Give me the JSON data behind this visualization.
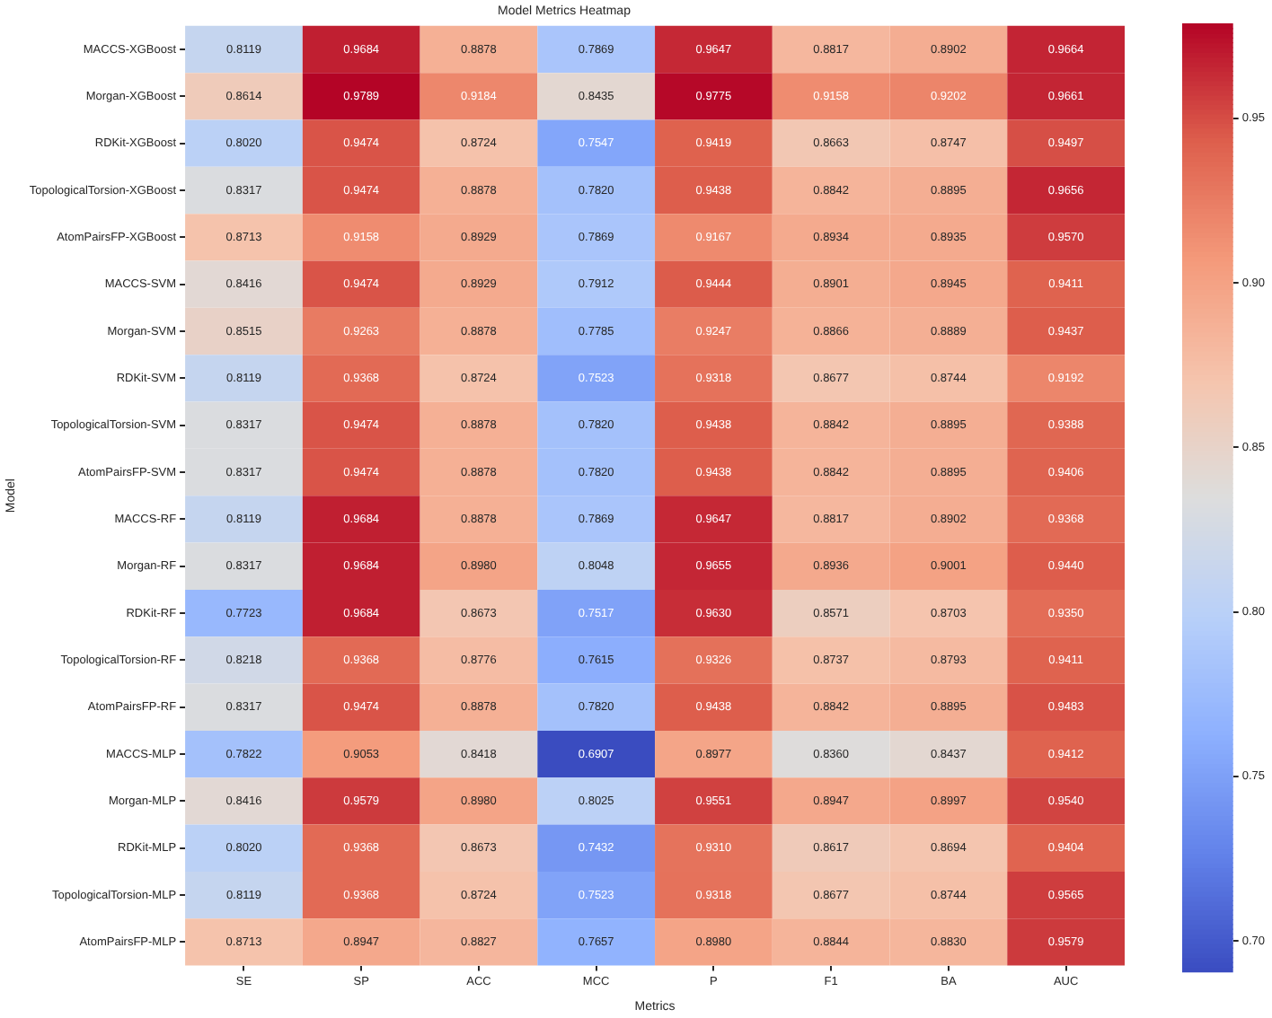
{
  "chart_data": {
    "type": "heatmap",
    "title": "Model Metrics Heatmap",
    "xlabel": "Metrics",
    "ylabel": "Model",
    "categories": [
      "SE",
      "SP",
      "ACC",
      "MCC",
      "P",
      "F1",
      "BA",
      "AUC"
    ],
    "y_categories": [
      "MACCS-XGBoost",
      "Morgan-XGBoost",
      "RDKit-XGBoost",
      "TopologicalTorsion-XGBoost",
      "AtomPairsFP-XGBoost",
      "MACCS-SVM",
      "Morgan-SVM",
      "RDKit-SVM",
      "TopologicalTorsion-SVM",
      "AtomPairsFP-SVM",
      "MACCS-RF",
      "Morgan-RF",
      "RDKit-RF",
      "TopologicalTorsion-RF",
      "AtomPairsFP-RF",
      "MACCS-MLP",
      "Morgan-MLP",
      "RDKit-MLP",
      "TopologicalTorsion-MLP",
      "AtomPairsFP-MLP"
    ],
    "cells": [
      [
        0.8119,
        0.9684,
        0.8878,
        0.7869,
        0.9647,
        0.8817,
        0.8902,
        0.9664
      ],
      [
        0.8614,
        0.9789,
        0.9184,
        0.8435,
        0.9775,
        0.9158,
        0.9202,
        0.9661
      ],
      [
        0.802,
        0.9474,
        0.8724,
        0.7547,
        0.9419,
        0.8663,
        0.8747,
        0.9497
      ],
      [
        0.8317,
        0.9474,
        0.8878,
        0.782,
        0.9438,
        0.8842,
        0.8895,
        0.9656
      ],
      [
        0.8713,
        0.9158,
        0.8929,
        0.7869,
        0.9167,
        0.8934,
        0.8935,
        0.957
      ],
      [
        0.8416,
        0.9474,
        0.8929,
        0.7912,
        0.9444,
        0.8901,
        0.8945,
        0.9411
      ],
      [
        0.8515,
        0.9263,
        0.8878,
        0.7785,
        0.9247,
        0.8866,
        0.8889,
        0.9437
      ],
      [
        0.8119,
        0.9368,
        0.8724,
        0.7523,
        0.9318,
        0.8677,
        0.8744,
        0.9192
      ],
      [
        0.8317,
        0.9474,
        0.8878,
        0.782,
        0.9438,
        0.8842,
        0.8895,
        0.9388
      ],
      [
        0.8317,
        0.9474,
        0.8878,
        0.782,
        0.9438,
        0.8842,
        0.8895,
        0.9406
      ],
      [
        0.8119,
        0.9684,
        0.8878,
        0.7869,
        0.9647,
        0.8817,
        0.8902,
        0.9368
      ],
      [
        0.8317,
        0.9684,
        0.898,
        0.8048,
        0.9655,
        0.8936,
        0.9001,
        0.944
      ],
      [
        0.7723,
        0.9684,
        0.8673,
        0.7517,
        0.963,
        0.8571,
        0.8703,
        0.935
      ],
      [
        0.8218,
        0.9368,
        0.8776,
        0.7615,
        0.9326,
        0.8737,
        0.8793,
        0.9411
      ],
      [
        0.8317,
        0.9474,
        0.8878,
        0.782,
        0.9438,
        0.8842,
        0.8895,
        0.9483
      ],
      [
        0.7822,
        0.9053,
        0.8418,
        0.6907,
        0.8977,
        0.836,
        0.8437,
        0.9412
      ],
      [
        0.8416,
        0.9579,
        0.898,
        0.8025,
        0.9551,
        0.8947,
        0.8997,
        0.954
      ],
      [
        0.802,
        0.9368,
        0.8673,
        0.7432,
        0.931,
        0.8617,
        0.8694,
        0.9404
      ],
      [
        0.8119,
        0.9368,
        0.8724,
        0.7523,
        0.9318,
        0.8677,
        0.8744,
        0.9565
      ],
      [
        0.8713,
        0.8947,
        0.8827,
        0.7657,
        0.898,
        0.8844,
        0.883,
        0.9579
      ]
    ],
    "cell_labels": [
      [
        "0.8119",
        "0.9684",
        "0.8878",
        "0.7869",
        "0.9647",
        "0.8817",
        "0.8902",
        "0.9664"
      ],
      [
        "0.8614",
        "0.9789",
        "0.9184",
        "0.8435",
        "0.9775",
        "0.9158",
        "0.9202",
        "0.9661"
      ],
      [
        "0.8020",
        "0.9474",
        "0.8724",
        "0.7547",
        "0.9419",
        "0.8663",
        "0.8747",
        "0.9497"
      ],
      [
        "0.8317",
        "0.9474",
        "0.8878",
        "0.7820",
        "0.9438",
        "0.8842",
        "0.8895",
        "0.9656"
      ],
      [
        "0.8713",
        "0.9158",
        "0.8929",
        "0.7869",
        "0.9167",
        "0.8934",
        "0.8935",
        "0.9570"
      ],
      [
        "0.8416",
        "0.9474",
        "0.8929",
        "0.7912",
        "0.9444",
        "0.8901",
        "0.8945",
        "0.9411"
      ],
      [
        "0.8515",
        "0.9263",
        "0.8878",
        "0.7785",
        "0.9247",
        "0.8866",
        "0.8889",
        "0.9437"
      ],
      [
        "0.8119",
        "0.9368",
        "0.8724",
        "0.7523",
        "0.9318",
        "0.8677",
        "0.8744",
        "0.9192"
      ],
      [
        "0.8317",
        "0.9474",
        "0.8878",
        "0.7820",
        "0.9438",
        "0.8842",
        "0.8895",
        "0.9388"
      ],
      [
        "0.8317",
        "0.9474",
        "0.8878",
        "0.7820",
        "0.9438",
        "0.8842",
        "0.8895",
        "0.9406"
      ],
      [
        "0.8119",
        "0.9684",
        "0.8878",
        "0.7869",
        "0.9647",
        "0.8817",
        "0.8902",
        "0.9368"
      ],
      [
        "0.8317",
        "0.9684",
        "0.8980",
        "0.8048",
        "0.9655",
        "0.8936",
        "0.9001",
        "0.9440"
      ],
      [
        "0.7723",
        "0.9684",
        "0.8673",
        "0.7517",
        "0.9630",
        "0.8571",
        "0.8703",
        "0.9350"
      ],
      [
        "0.8218",
        "0.9368",
        "0.8776",
        "0.7615",
        "0.9326",
        "0.8737",
        "0.8793",
        "0.9411"
      ],
      [
        "0.8317",
        "0.9474",
        "0.8878",
        "0.7820",
        "0.9438",
        "0.8842",
        "0.8895",
        "0.9483"
      ],
      [
        "0.7822",
        "0.9053",
        "0.8418",
        "0.6907",
        "0.8977",
        "0.8360",
        "0.8437",
        "0.9412"
      ],
      [
        "0.8416",
        "0.9579",
        "0.8980",
        "0.8025",
        "0.9551",
        "0.8947",
        "0.8997",
        "0.9540"
      ],
      [
        "0.8020",
        "0.9368",
        "0.8673",
        "0.7432",
        "0.9310",
        "0.8617",
        "0.8694",
        "0.9404"
      ],
      [
        "0.8119",
        "0.9368",
        "0.8724",
        "0.7523",
        "0.9318",
        "0.8677",
        "0.8744",
        "0.9565"
      ],
      [
        "0.8713",
        "0.8947",
        "0.8827",
        "0.7657",
        "0.8980",
        "0.8844",
        "0.8830",
        "0.9579"
      ]
    ],
    "clim": [
      0.6907,
      0.9789
    ],
    "cticks": [
      {
        "value": 0.7,
        "label": "0.70"
      },
      0.75,
      {
        "value": 0.8,
        "label": "0.80"
      },
      0.85,
      {
        "value": 0.9,
        "label": "0.90"
      },
      0.95
    ]
  }
}
